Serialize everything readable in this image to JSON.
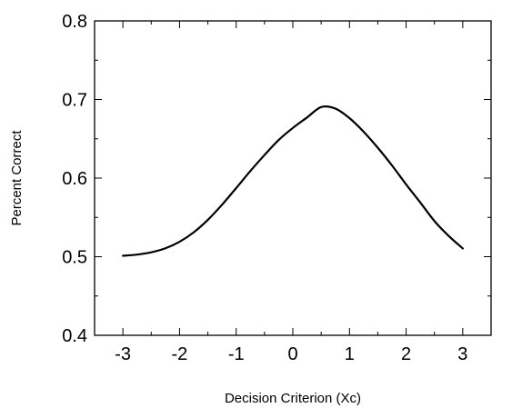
{
  "chart_data": {
    "type": "line",
    "title": "",
    "xlabel": "Decision Criterion (Xc)",
    "ylabel": "Percent Correct",
    "xlim": [
      -3.5,
      3.5
    ],
    "ylim": [
      0.4,
      0.8
    ],
    "xticks": [
      -3,
      -2,
      -1,
      0,
      1,
      2,
      3
    ],
    "yticks": [
      0.4,
      0.5,
      0.6,
      0.7,
      0.8
    ],
    "xtick_labels": [
      "-3",
      "-2",
      "-1",
      "0",
      "1",
      "2",
      "3"
    ],
    "ytick_labels": [
      "0.4",
      "0.5",
      "0.6",
      "0.7",
      "0.8"
    ],
    "grid": false,
    "legend": "none",
    "line_color": "#000000",
    "series": [
      {
        "x": [
          -3.0,
          -2.75,
          -2.5,
          -2.25,
          -2.0,
          -1.75,
          -1.5,
          -1.25,
          -1.0,
          -0.75,
          -0.5,
          -0.25,
          0.0,
          0.25,
          0.5,
          0.75,
          1.0,
          1.25,
          1.5,
          1.75,
          2.0,
          2.25,
          2.5,
          2.75,
          3.0
        ],
        "values": [
          0.5012,
          0.5027,
          0.5056,
          0.5107,
          0.519,
          0.531,
          0.5469,
          0.5661,
          0.5873,
          0.609,
          0.6294,
          0.6485,
          0.6638,
          0.6771,
          0.6904,
          0.6885,
          0.6763,
          0.659,
          0.6386,
          0.6162,
          0.592,
          0.569,
          0.5454,
          0.5265,
          0.5105
        ]
      }
    ]
  }
}
